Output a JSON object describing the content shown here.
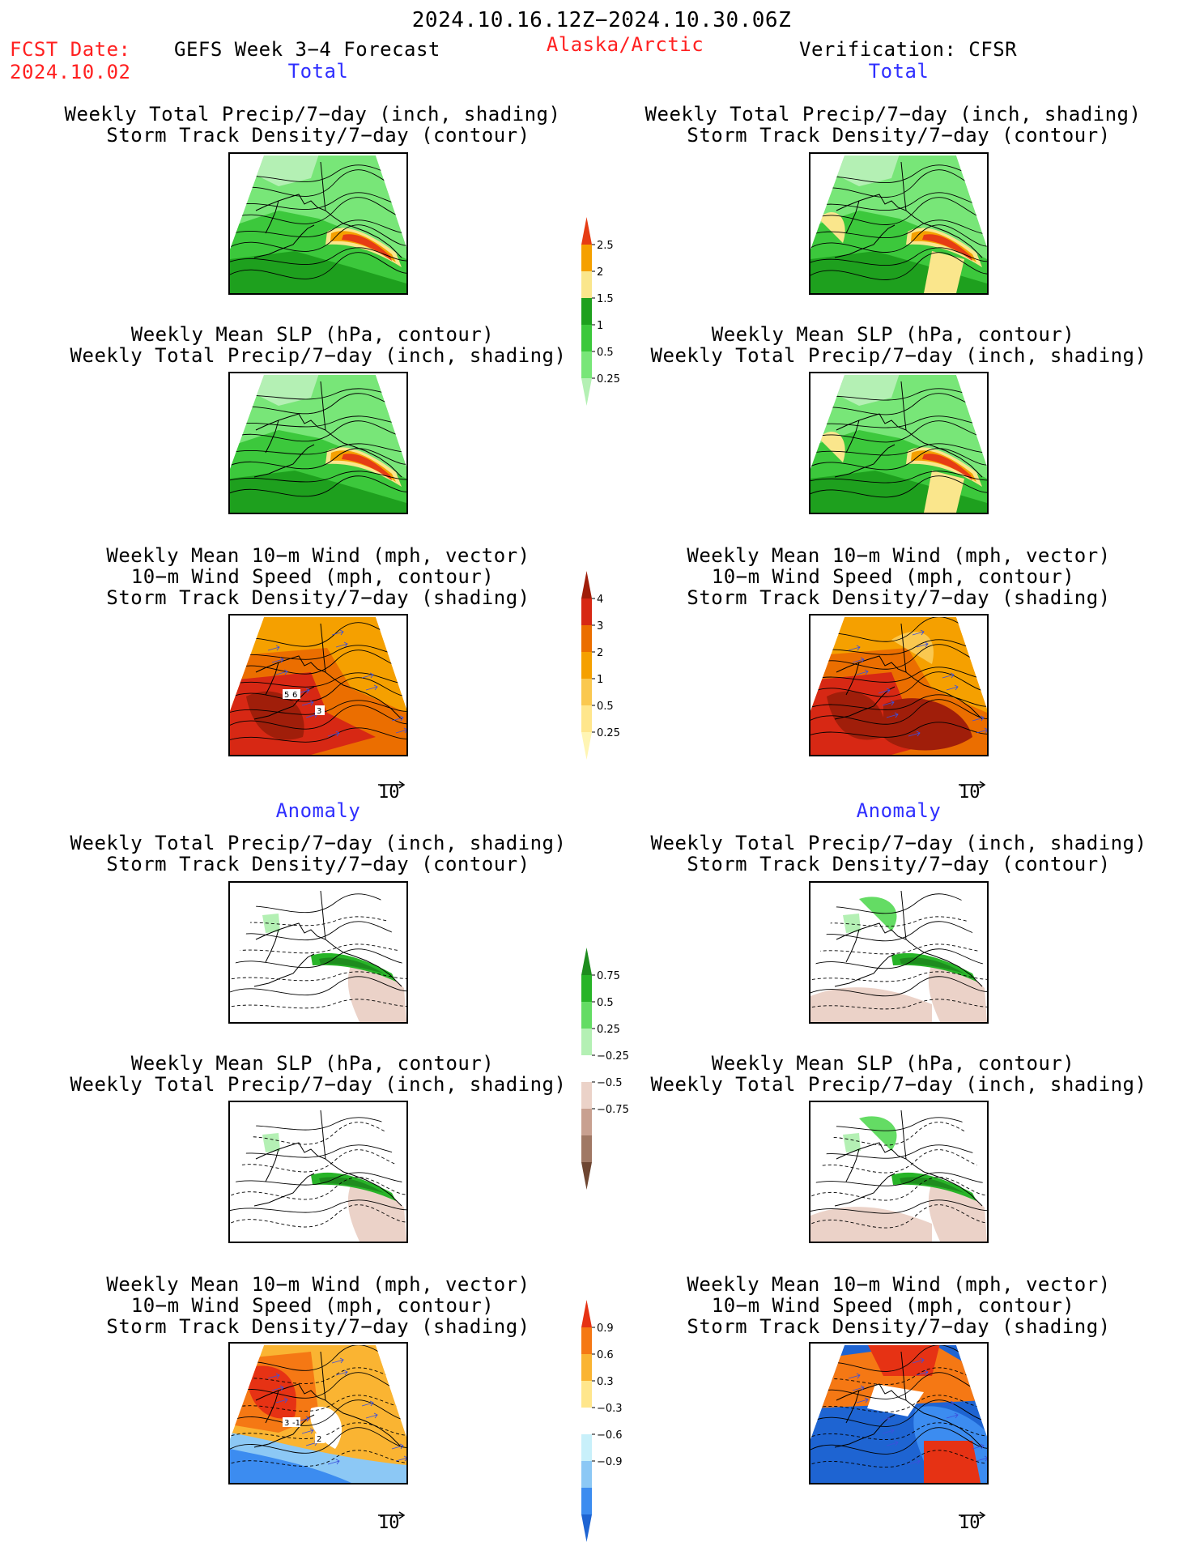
{
  "header": {
    "period": "2024.10.16.12Z−2024.10.30.06Z",
    "fcst_label": "FCST Date:",
    "fcst_date": "2024.10.02",
    "forecast_title": "GEFS Week 3−4 Forecast",
    "region": "Alaska/Arctic",
    "verification": "Verification: CFSR"
  },
  "sections": {
    "total": "Total",
    "anomaly": "Anomaly"
  },
  "titles": {
    "precip_storm": [
      "Weekly Total Precip/7−day (inch, shading)",
      "Storm Track Density/7−day (contour)"
    ],
    "slp_precip": [
      "Weekly Mean SLP (hPa, contour)",
      "Weekly Total Precip/7−day (inch, shading)"
    ],
    "wind_storm": [
      "Weekly Mean 10−m Wind (mph, vector)",
      "10−m Wind Speed (mph, contour)",
      "Storm Track Density/7−day (shading)"
    ]
  },
  "vector_ref": "10",
  "chart_data": [
    {
      "type": "heatmap",
      "panel": "forecast-total-precip",
      "colorbar": "precip_total"
    },
    {
      "type": "heatmap",
      "panel": "forecast-total-slp",
      "colorbar": "precip_total"
    },
    {
      "type": "heatmap",
      "panel": "forecast-total-wind",
      "colorbar": "storm_total",
      "contour_labels": [
        "6",
        "3",
        "5"
      ]
    },
    {
      "type": "heatmap",
      "panel": "verif-total-precip",
      "colorbar": "precip_total"
    },
    {
      "type": "heatmap",
      "panel": "verif-total-slp",
      "colorbar": "precip_total"
    },
    {
      "type": "heatmap",
      "panel": "verif-total-wind",
      "colorbar": "storm_total"
    },
    {
      "type": "heatmap",
      "panel": "forecast-anom-precip",
      "colorbar": "precip_anom"
    },
    {
      "type": "heatmap",
      "panel": "forecast-anom-slp",
      "colorbar": "precip_anom"
    },
    {
      "type": "heatmap",
      "panel": "forecast-anom-wind",
      "colorbar": "storm_anom",
      "contour_labels": [
        "-1",
        "2",
        "3"
      ]
    },
    {
      "type": "heatmap",
      "panel": "verif-anom-precip",
      "colorbar": "precip_anom"
    },
    {
      "type": "heatmap",
      "panel": "verif-anom-slp",
      "colorbar": "precip_anom"
    },
    {
      "type": "heatmap",
      "panel": "verif-anom-wind",
      "colorbar": "storm_anom"
    }
  ],
  "colorbars": {
    "precip_total": {
      "ticks": [
        "0.25",
        "0.5",
        "1",
        "1.5",
        "2",
        "2.5"
      ],
      "colors": [
        "#b4f0b4",
        "#78e678",
        "#3cc83c",
        "#1ea01e",
        "#fae68c",
        "#f5a000",
        "#e63c14"
      ]
    },
    "storm_total": {
      "ticks": [
        "0.25",
        "0.5",
        "1",
        "2",
        "3",
        "4"
      ],
      "colors": [
        "#fff5b4",
        "#ffe68c",
        "#fac850",
        "#f5a000",
        "#eb6e00",
        "#d72814",
        "#a01e0a"
      ]
    },
    "precip_anom": {
      "ticks": [
        "−0.75",
        "−0.5",
        "−0.25",
        "0.25",
        "0.5",
        "0.75"
      ],
      "colors": [
        "#6e4632",
        "#a07864",
        "#c8a090",
        "#ebd2c8",
        "#ffffff",
        "#b4f0b4",
        "#64dc64",
        "#28b428",
        "#1e8c1e"
      ]
    },
    "storm_anom": {
      "ticks": [
        "−0.9",
        "−0.6",
        "−0.3",
        "0.3",
        "0.6",
        "0.9"
      ],
      "colors": [
        "#1e64d2",
        "#3c8cf0",
        "#8cc8f5",
        "#c8f0fa",
        "#ffffff",
        "#ffe68c",
        "#fab432",
        "#f57814",
        "#e63214"
      ]
    }
  }
}
